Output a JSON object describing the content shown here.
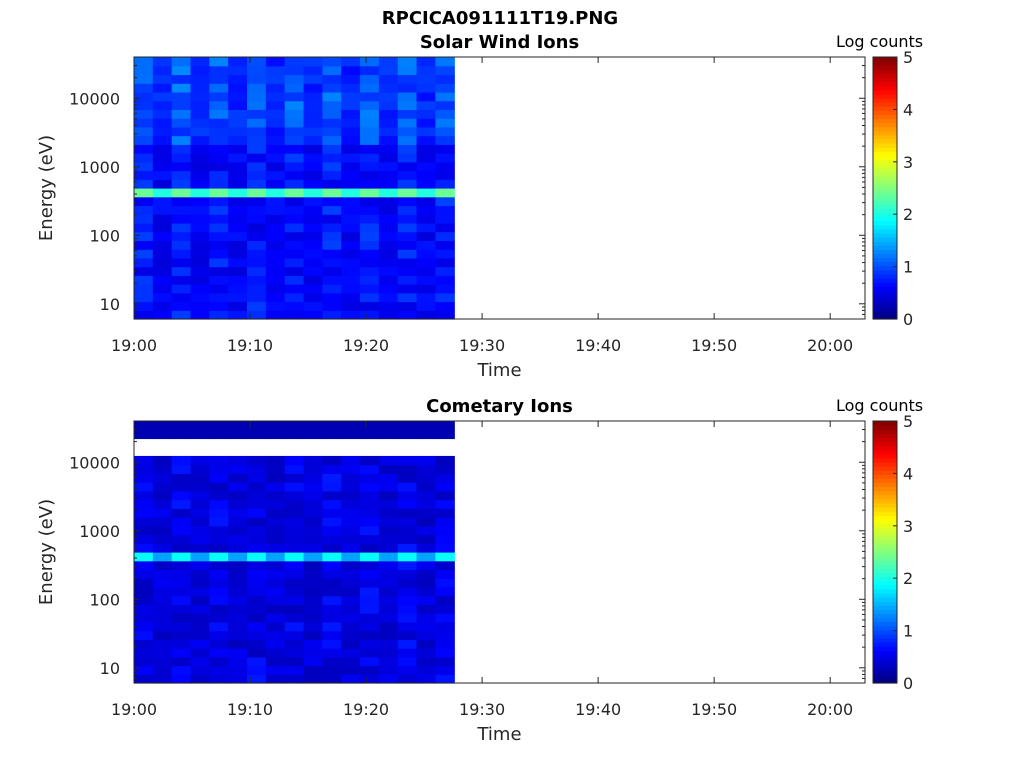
{
  "figure_title": "RPCICA091111T19.PNG",
  "chart_data": [
    {
      "type": "heatmap",
      "title": "Solar Wind Ions",
      "xlabel": "Time",
      "ylabel": "Energy (eV)",
      "x_ticks": [
        "19:00",
        "19:10",
        "19:20",
        "19:30",
        "19:40",
        "19:50",
        "20:00"
      ],
      "x_range": [
        "19:00",
        "20:03"
      ],
      "data_end": "19:27.6",
      "y_scale": "log",
      "y_ticks": [
        "10",
        "100",
        "1000",
        "10000"
      ],
      "y_range": [
        6,
        40000
      ],
      "colorbar": {
        "label": "Log counts",
        "range": [
          0,
          5
        ],
        "ticks": [
          "0",
          "1",
          "2",
          "3",
          "4",
          "5"
        ],
        "colormap": "jet"
      },
      "features": [
        {
          "energy_ev": 420,
          "log_counts": 2.4,
          "note": "bright proton band"
        }
      ]
    },
    {
      "type": "heatmap",
      "title": "Cometary Ions",
      "xlabel": "Time",
      "ylabel": "Energy (eV)",
      "x_ticks": [
        "19:00",
        "19:10",
        "19:20",
        "19:30",
        "19:40",
        "19:50",
        "20:00"
      ],
      "x_range": [
        "19:00",
        "20:03"
      ],
      "data_end": "19:27.6",
      "y_scale": "log",
      "y_ticks": [
        "10",
        "100",
        "1000",
        "10000"
      ],
      "y_range": [
        6,
        40000
      ],
      "colorbar": {
        "label": "Log counts",
        "range": [
          0,
          5
        ],
        "ticks": [
          "0",
          "1",
          "2",
          "3",
          "4",
          "5"
        ],
        "colormap": "jet"
      },
      "features": [
        {
          "energy_ev": 400,
          "log_counts": 1.9,
          "note": "cyan band"
        }
      ]
    }
  ]
}
